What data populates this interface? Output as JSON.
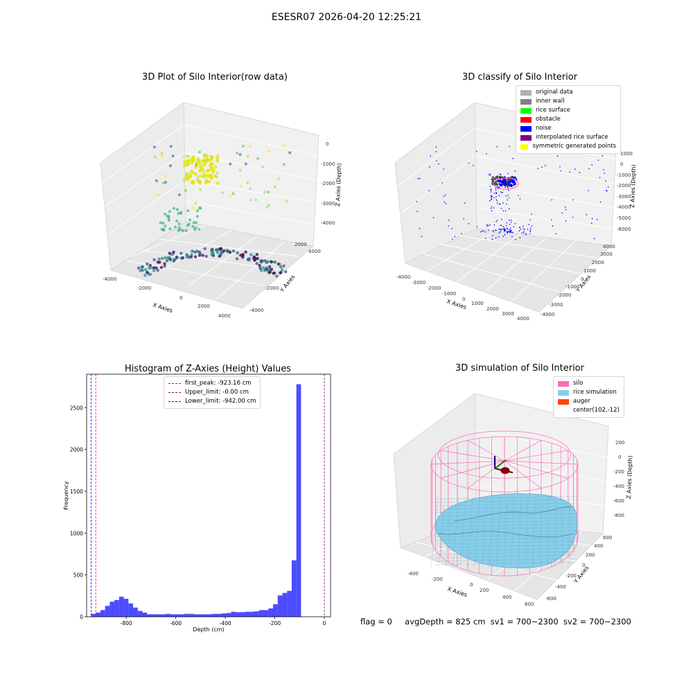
{
  "suptitle": "ESESR07 2026-04-20 12:25:21",
  "panels": {
    "raw": {
      "title": "3D Plot of Silo Interior(row data)",
      "xlabel": "X Axies",
      "ylabel": "Y Axies",
      "zlabel": "Z Axies (Depth)",
      "xticks": [
        "-4000",
        "-2000",
        "0",
        "2000",
        "4000"
      ],
      "yticks": [
        "-4000",
        "-2000",
        "0",
        "2000",
        "4000"
      ],
      "zticks": [
        "0",
        "-1000",
        "-2000",
        "-3000",
        "-4000"
      ]
    },
    "classify": {
      "title": "3D classify of Silo Interior",
      "xlabel": "X Axies",
      "ylabel": "Y Axies",
      "zlabel": "Z Axies (Depth)",
      "xticks": [
        "-4000",
        "-3000",
        "-2000",
        "-1000",
        "0",
        "1000",
        "2000",
        "3000",
        "4000"
      ],
      "yticks": [
        "-4000",
        "-3000",
        "-2000",
        "-1000",
        "0",
        "1000",
        "2000",
        "3000",
        "4000"
      ],
      "zticks": [
        "1000",
        "0",
        "-1000",
        "-2000",
        "-3000",
        "-4000",
        "-5000",
        "-6000"
      ],
      "legend": [
        {
          "label": "original data",
          "color": "#b0b0b0"
        },
        {
          "label": "inner wall",
          "color": "#808080"
        },
        {
          "label": "rice surface",
          "color": "#00ff00"
        },
        {
          "label": "obstacle",
          "color": "#ff0000"
        },
        {
          "label": "noise",
          "color": "#0000ff"
        },
        {
          "label": "interpolated rice surface",
          "color": "#800080"
        },
        {
          "label": "symmetric generated points",
          "color": "#ffff00"
        }
      ]
    },
    "simulation": {
      "title": "3D simulation of Silo Interior",
      "xlabel": "X Axies",
      "ylabel": "Y Axies",
      "zlabel": "Z Axies (Depth)",
      "xticks": [
        "-400",
        "-200",
        "0",
        "200",
        "400",
        "600"
      ],
      "yticks": [
        "-600",
        "-400",
        "-200",
        "0",
        "200",
        "400",
        "600"
      ],
      "zticks": [
        "200",
        "0",
        "-200",
        "-400",
        "-600",
        "-800"
      ],
      "legend": [
        {
          "label": "silo",
          "color": "#ff69b4"
        },
        {
          "label": "rice simulation",
          "color": "#87ceeb"
        },
        {
          "label": "auger",
          "color": "#ff4500"
        },
        {
          "label": "center(102,-12)",
          "color": ""
        }
      ]
    }
  },
  "chart_data": {
    "type": "bar",
    "title": "Histogram of Z-Axies (Height) Values",
    "xlabel": "Depth (cm)",
    "ylabel": "Frequency",
    "xlim": [
      -960,
      25
    ],
    "ylim": [
      0,
      2900
    ],
    "xticks": [
      -800,
      -600,
      -400,
      -200,
      0
    ],
    "yticks": [
      0,
      500,
      1000,
      1500,
      2000,
      2500
    ],
    "bin_start": -942,
    "bin_width": 18.84,
    "values": [
      35,
      50,
      80,
      130,
      180,
      200,
      240,
      215,
      160,
      110,
      70,
      50,
      30,
      30,
      30,
      30,
      35,
      30,
      30,
      30,
      35,
      35,
      30,
      30,
      30,
      30,
      35,
      35,
      40,
      45,
      60,
      55,
      55,
      60,
      60,
      65,
      80,
      80,
      100,
      150,
      255,
      285,
      310,
      675,
      2780
    ],
    "bar_color": "#0000ff",
    "bar_alpha": 0.7,
    "lines": [
      {
        "label": "first_peak: -923.16 cm",
        "x": -923.16,
        "color": "#ff0000"
      },
      {
        "label": "Upper_limit: -0.00 cm",
        "x": -0.0,
        "color": "#800080"
      },
      {
        "label": "Lower_limit: -942.00 cm",
        "x": -942.0,
        "color": "#0000ff"
      }
    ],
    "legend_position": "upper center"
  },
  "footer": {
    "flag": "flag = 0",
    "avg_depth": "avgDepth = 825 cm",
    "sv1": "sv1 = 700~2300",
    "sv2": "sv2 = 700~2300"
  }
}
